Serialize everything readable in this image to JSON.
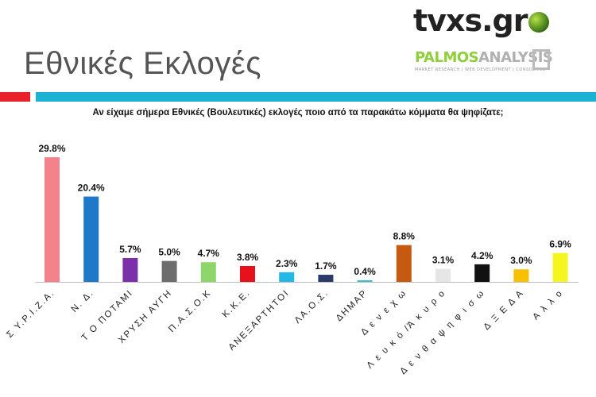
{
  "header": {
    "title": "Εθνικές Εκλογές",
    "logo_tvxs": "tvxs.gr",
    "logo_palmos_part1": "PALMOS",
    "logo_palmos_part2": "ANALYSIS",
    "logo_palmos_tagline": "MARKET RESEARCH | WEB DEVELOPMENT | CONSULTING"
  },
  "colors": {
    "accent_red": "#e8212b",
    "accent_cyan": "#1bb3d3"
  },
  "chart_data": {
    "type": "bar",
    "title": "Αν είχαμε σήμερα Εθνικές (Βουλευτικές) εκλογές ποιο από τα παρακάτω κόμματα θα ψηφίζατε;",
    "xlabel": "",
    "ylabel": "",
    "ylim": [
      0,
      30
    ],
    "grid": false,
    "categories": [
      "Σ Υ.Ρ.Ι.Ζ.Α.",
      "Ν. Δ.",
      "Τ Ο ΠΟΤΑΜΙ",
      "ΧΡΥΣΗ ΑΥΓΗ",
      "Π.Α.Σ.Ο.Κ",
      "Κ.Κ.Ε.",
      "ΑΝΕΞΑΡΤΗΤΟΙ",
      "ΛΑ.Ο.Σ.",
      "ΔΗΜΑΡ",
      "Δ ε ν ε χ ω",
      "Λ ε υ κ ό /Ά κ υ ρ ο",
      "Δ ε ν  θ α  ψ η φ ι σ ω",
      "Δ Ξ Ε Δ Α",
      "Α λ λ ο"
    ],
    "values": [
      29.8,
      20.4,
      5.7,
      5.0,
      4.7,
      3.8,
      2.3,
      1.7,
      0.4,
      8.8,
      3.1,
      4.2,
      3.0,
      6.9
    ],
    "labels": [
      "29.8%",
      "20.4%",
      "5.7%",
      "5.0%",
      "4.7%",
      "3.8%",
      "2.3%",
      "1.7%",
      "0.4%",
      "8.8%",
      "3.1%",
      "4.2%",
      "3.0%",
      "6.9%"
    ],
    "bar_colors": [
      "#f4828a",
      "#1f78c8",
      "#7b2fa8",
      "#6d6d6d",
      "#8ed66a",
      "#e8101a",
      "#22b8e8",
      "#2a3a6a",
      "#39c3c6",
      "#c65a10",
      "#e6e6e6",
      "#111111",
      "#f7c000",
      "#f5f520"
    ]
  }
}
